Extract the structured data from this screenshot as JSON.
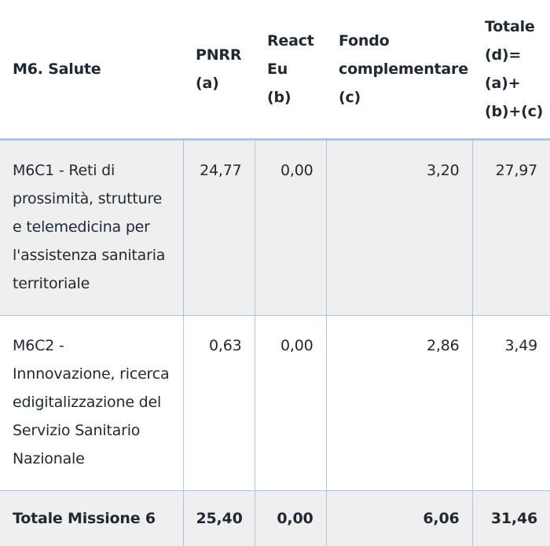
{
  "table": {
    "headers": {
      "mission": "M6. Salute",
      "pnrr": "PNRR\n(a)",
      "react": "React\nEu\n(b)",
      "fondo": "Fondo\ncomplementare\n(c)",
      "totale": "Totale\n(d)=\n(a)+\n(b)+(c)"
    },
    "rows": [
      {
        "label": "M6C1 - Reti di prossimità, strutture e telemedicina per l'assistenza sanitaria territoriale",
        "pnrr": "24,77",
        "react": "0,00",
        "fondo": "3,20",
        "totale": "27,97"
      },
      {
        "label": "M6C2 - Innnovazione, ricerca edigitalizzazione del Servizio Sanitario Nazionale",
        "pnrr": "0,63",
        "react": "0,00",
        "fondo": "2,86",
        "totale": "3,49"
      }
    ],
    "total": {
      "label": "Totale Missione 6",
      "pnrr": "25,40",
      "react": "0,00",
      "fondo": "6,06",
      "totale": "31,46"
    }
  }
}
